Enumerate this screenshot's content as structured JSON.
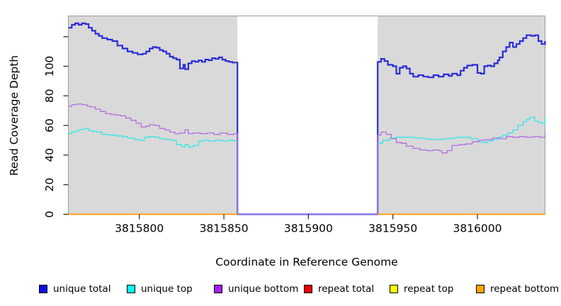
{
  "chart_data": {
    "type": "line",
    "subtype": "step-coverage-plot",
    "title": "",
    "xlabel": "Coordinate in Reference Genome",
    "ylabel": "Read Coverage Depth",
    "xlim": [
      3815758,
      3816040
    ],
    "ylim": [
      0,
      134
    ],
    "x_ticks": [
      3815800,
      3815850,
      3815900,
      3815950,
      3816000
    ],
    "y_ticks": [
      0,
      20,
      40,
      60,
      80,
      100,
      120
    ],
    "y_tick_labels": [
      "0",
      "20",
      "40",
      "60",
      "80",
      "100",
      ""
    ],
    "grid": false,
    "legend_position": "bottom",
    "panel_background": "#d9d9d9",
    "panel_border_color": "#9c9c9c",
    "gap_region": {
      "start": 3815858,
      "end": 3815941,
      "fill": "#ffffff",
      "note": "no-data region, unique lines drop to 0, repeat lines not drawn"
    },
    "series": [
      {
        "name": "unique total",
        "color": "#2b2bd6",
        "width": 2.2,
        "segments": [
          [
            [
              3815758,
              126
            ],
            [
              3815760,
              128
            ],
            [
              3815762,
              129
            ],
            [
              3815764,
              128
            ],
            [
              3815766,
              129
            ],
            [
              3815768,
              128.5
            ],
            [
              3815770,
              126
            ],
            [
              3815772,
              124
            ],
            [
              3815774,
              122
            ],
            [
              3815776,
              120.5
            ],
            [
              3815778,
              119
            ],
            [
              3815781,
              118
            ],
            [
              3815784,
              117
            ],
            [
              3815787,
              114
            ],
            [
              3815790,
              112
            ],
            [
              3815793,
              110
            ],
            [
              3815796,
              109
            ],
            [
              3815799,
              108
            ],
            [
              3815802,
              108.5
            ],
            [
              3815804,
              110
            ],
            [
              3815806,
              112
            ],
            [
              3815808,
              113
            ],
            [
              3815810,
              112.5
            ],
            [
              3815812,
              111
            ],
            [
              3815814,
              110
            ],
            [
              3815816,
              108.5
            ],
            [
              3815818,
              106.5
            ],
            [
              3815820,
              105.5
            ],
            [
              3815822,
              104.5
            ],
            [
              3815824,
              98.5
            ],
            [
              3815826,
              101
            ],
            [
              3815827,
              98
            ],
            [
              3815829,
              102
            ],
            [
              3815831,
              103.5
            ],
            [
              3815833,
              103
            ],
            [
              3815835,
              104
            ],
            [
              3815837,
              103
            ],
            [
              3815839,
              104.5
            ],
            [
              3815841,
              104
            ],
            [
              3815843,
              105.5
            ],
            [
              3815845,
              105
            ],
            [
              3815847,
              106
            ],
            [
              3815849,
              104.5
            ],
            [
              3815851,
              103.5
            ],
            [
              3815853,
              103
            ],
            [
              3815855,
              102.5
            ],
            [
              3815858,
              0
            ],
            [
              3815941,
              103
            ],
            [
              3815943,
              105
            ],
            [
              3815945,
              103.5
            ],
            [
              3815947,
              101
            ],
            [
              3815950,
              100
            ],
            [
              3815952,
              95
            ],
            [
              3815954,
              99
            ],
            [
              3815956,
              100
            ],
            [
              3815958,
              98.5
            ],
            [
              3815960,
              95
            ],
            [
              3815962,
              93
            ],
            [
              3815965,
              94
            ],
            [
              3815968,
              93
            ],
            [
              3815971,
              92.5
            ],
            [
              3815974,
              94
            ],
            [
              3815977,
              93
            ],
            [
              3815980,
              94.5
            ],
            [
              3815983,
              93.5
            ],
            [
              3815985,
              95
            ],
            [
              3815988,
              94
            ],
            [
              3815990,
              97
            ],
            [
              3815992,
              99
            ],
            [
              3815994,
              100.5
            ],
            [
              3815997,
              101
            ],
            [
              3816000,
              95.5
            ],
            [
              3816002,
              95
            ],
            [
              3816004,
              100
            ],
            [
              3816006,
              100.5
            ],
            [
              3816008,
              100
            ],
            [
              3816010,
              102
            ],
            [
              3816012,
              104
            ],
            [
              3816013,
              106
            ],
            [
              3816015,
              110
            ],
            [
              3816017,
              113
            ],
            [
              3816019,
              116
            ],
            [
              3816021,
              113
            ],
            [
              3816023,
              115
            ],
            [
              3816025,
              117
            ],
            [
              3816027,
              119
            ],
            [
              3816029,
              121
            ],
            [
              3816032,
              120.5
            ],
            [
              3816034,
              121
            ],
            [
              3816036,
              117
            ],
            [
              3816038,
              115
            ],
            [
              3816040,
              117
            ]
          ]
        ]
      },
      {
        "name": "unique top",
        "color": "#35e6e6",
        "width": 1.3,
        "segments": [
          [
            [
              3815758,
              54.5
            ],
            [
              3815760,
              55.5
            ],
            [
              3815762,
              56
            ],
            [
              3815764,
              57
            ],
            [
              3815766,
              57.5
            ],
            [
              3815768,
              58
            ],
            [
              3815770,
              56.5
            ],
            [
              3815772,
              56
            ],
            [
              3815775,
              55.5
            ],
            [
              3815778,
              54
            ],
            [
              3815782,
              53.5
            ],
            [
              3815786,
              53
            ],
            [
              3815790,
              52.5
            ],
            [
              3815793,
              51.5
            ],
            [
              3815797,
              50.5
            ],
            [
              3815800,
              50
            ],
            [
              3815803,
              52
            ],
            [
              3815806,
              52.5
            ],
            [
              3815809,
              52
            ],
            [
              3815812,
              51
            ],
            [
              3815816,
              50.5
            ],
            [
              3815819,
              50
            ],
            [
              3815822,
              47
            ],
            [
              3815825,
              45.5
            ],
            [
              3815827,
              47
            ],
            [
              3815829,
              45.5
            ],
            [
              3815832,
              46.5
            ],
            [
              3815835,
              49.5
            ],
            [
              3815838,
              50
            ],
            [
              3815841,
              49.5
            ],
            [
              3815845,
              50
            ],
            [
              3815849,
              49.5
            ],
            [
              3815853,
              50
            ],
            [
              3815856,
              49.5
            ],
            [
              3815858,
              0
            ],
            [
              3815941,
              48
            ],
            [
              3815944,
              50
            ],
            [
              3815948,
              51.5
            ],
            [
              3815952,
              52
            ],
            [
              3815958,
              52
            ],
            [
              3815963,
              51.5
            ],
            [
              3815968,
              51
            ],
            [
              3815972,
              50.5
            ],
            [
              3815976,
              50.5
            ],
            [
              3815980,
              51
            ],
            [
              3815984,
              51.5
            ],
            [
              3815988,
              52
            ],
            [
              3815992,
              52
            ],
            [
              3815996,
              51
            ],
            [
              3816000,
              49
            ],
            [
              3816003,
              48.5
            ],
            [
              3816006,
              49.5
            ],
            [
              3816009,
              50.5
            ],
            [
              3816012,
              52
            ],
            [
              3816015,
              53.5
            ],
            [
              3816018,
              55
            ],
            [
              3816021,
              57
            ],
            [
              3816024,
              60
            ],
            [
              3816027,
              62.5
            ],
            [
              3816029,
              64
            ],
            [
              3816031,
              65.5
            ],
            [
              3816034,
              63
            ],
            [
              3816036,
              62
            ],
            [
              3816038,
              61.5
            ],
            [
              3816040,
              66
            ]
          ]
        ]
      },
      {
        "name": "unique bottom",
        "color": "#b36fde",
        "width": 1.3,
        "segments": [
          [
            [
              3815758,
              73
            ],
            [
              3815760,
              74
            ],
            [
              3815763,
              74.5
            ],
            [
              3815766,
              74
            ],
            [
              3815769,
              73
            ],
            [
              3815771,
              72.5
            ],
            [
              3815774,
              71
            ],
            [
              3815777,
              69.5
            ],
            [
              3815780,
              68
            ],
            [
              3815783,
              67.5
            ],
            [
              3815786,
              67
            ],
            [
              3815789,
              66.5
            ],
            [
              3815792,
              65
            ],
            [
              3815795,
              63.5
            ],
            [
              3815798,
              61.5
            ],
            [
              3815801,
              59
            ],
            [
              3815804,
              59.5
            ],
            [
              3815806,
              60.5
            ],
            [
              3815809,
              60
            ],
            [
              3815812,
              58
            ],
            [
              3815815,
              57
            ],
            [
              3815818,
              55.5
            ],
            [
              3815821,
              54.5
            ],
            [
              3815824,
              55
            ],
            [
              3815827,
              57
            ],
            [
              3815829,
              54.5
            ],
            [
              3815832,
              55
            ],
            [
              3815836,
              54.5
            ],
            [
              3815840,
              55
            ],
            [
              3815844,
              54
            ],
            [
              3815848,
              55
            ],
            [
              3815852,
              54
            ],
            [
              3815856,
              54.5
            ],
            [
              3815858,
              0
            ],
            [
              3815941,
              53.5
            ],
            [
              3815943,
              55.5
            ],
            [
              3815946,
              54
            ],
            [
              3815949,
              51
            ],
            [
              3815952,
              48.5
            ],
            [
              3815955,
              48
            ],
            [
              3815958,
              46
            ],
            [
              3815962,
              44.5
            ],
            [
              3815966,
              43.5
            ],
            [
              3815970,
              43
            ],
            [
              3815974,
              43.5
            ],
            [
              3815977,
              43
            ],
            [
              3815979,
              41.5
            ],
            [
              3815982,
              43
            ],
            [
              3815985,
              46.5
            ],
            [
              3815989,
              47
            ],
            [
              3815993,
              47.5
            ],
            [
              3815997,
              49
            ],
            [
              3816001,
              50
            ],
            [
              3816005,
              50.5
            ],
            [
              3816009,
              51.5
            ],
            [
              3816013,
              51
            ],
            [
              3816017,
              52.5
            ],
            [
              3816021,
              52
            ],
            [
              3816025,
              52.5
            ],
            [
              3816029,
              52
            ],
            [
              3816033,
              52.5
            ],
            [
              3816037,
              52
            ],
            [
              3816040,
              55
            ]
          ]
        ]
      },
      {
        "name": "repeat total",
        "color": "#ee0000",
        "width": 1.3,
        "segments": [
          [
            [
              3815758,
              0
            ],
            [
              3815858,
              0
            ]
          ],
          [
            [
              3815941,
              0
            ],
            [
              3816040,
              0
            ]
          ]
        ]
      },
      {
        "name": "repeat top",
        "color": "#ffff00",
        "width": 1.3,
        "segments": [
          [
            [
              3815758,
              0
            ],
            [
              3815858,
              0
            ]
          ],
          [
            [
              3815941,
              0
            ],
            [
              3816040,
              0
            ]
          ]
        ]
      },
      {
        "name": "repeat bottom",
        "color": "#ff9e00",
        "width": 1.8,
        "segments": [
          [
            [
              3815758,
              0
            ],
            [
              3815858,
              0
            ]
          ],
          [
            [
              3815941,
              0
            ],
            [
              3816040,
              0
            ]
          ]
        ]
      }
    ]
  },
  "legend": {
    "items": [
      {
        "label": "unique total",
        "color": "#0d0dee"
      },
      {
        "label": "unique top",
        "color": "#00ffff"
      },
      {
        "label": "unique bottom",
        "color": "#a020f0"
      },
      {
        "label": "repeat total",
        "color": "#ee0000"
      },
      {
        "label": "repeat top",
        "color": "#ffff00"
      },
      {
        "label": "repeat bottom",
        "color": "#ffa500"
      }
    ]
  }
}
